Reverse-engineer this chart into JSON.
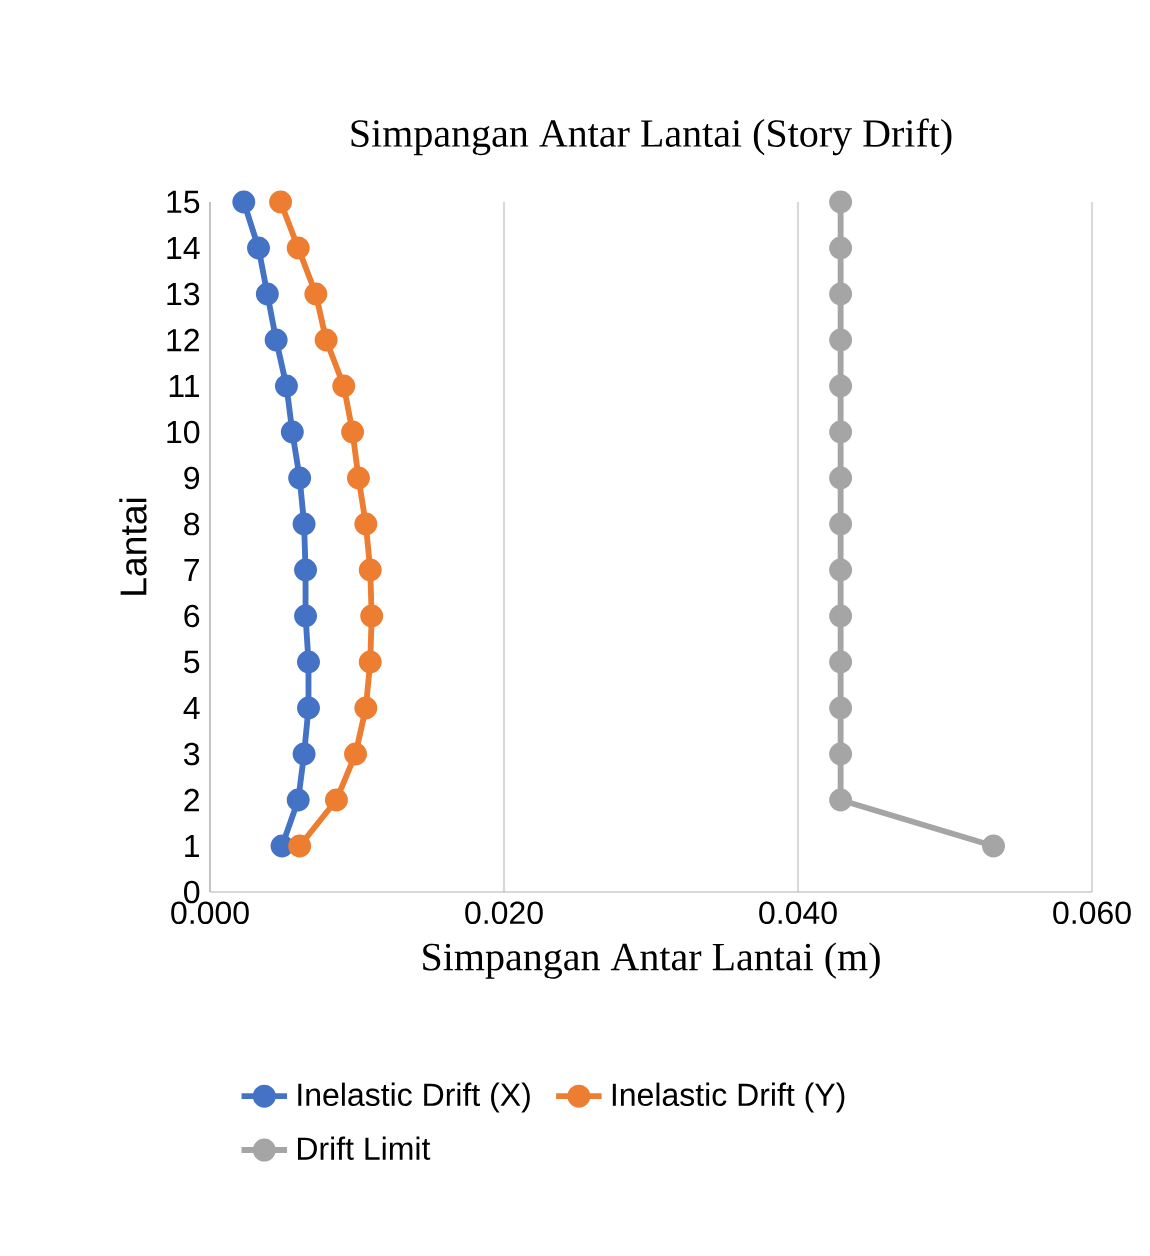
{
  "chart_data": {
    "type": "line",
    "title": "Simpangan Antar Lantai (Story Drift)",
    "xlabel": "Simpangan Antar Lantai (m)",
    "ylabel": "Lantai",
    "series": [
      {
        "name": "Inelastic Drift (X)",
        "color": "#4472c4",
        "x": [
          0.0023,
          0.0033,
          0.0039,
          0.0045,
          0.0052,
          0.0056,
          0.0061,
          0.0064,
          0.0065,
          0.0065,
          0.0067,
          0.0067,
          0.0064,
          0.006,
          0.0049
        ],
        "values": [
          15,
          14,
          13,
          12,
          11,
          10,
          9,
          8,
          7,
          6,
          5,
          4,
          3,
          2,
          1
        ]
      },
      {
        "name": "Inelastic Drift (Y)",
        "color": "#ed7d31",
        "x": [
          0.0048,
          0.006,
          0.0072,
          0.0079,
          0.0091,
          0.0097,
          0.0101,
          0.0106,
          0.0109,
          0.011,
          0.0109,
          0.0106,
          0.0099,
          0.0086,
          0.0061
        ],
        "values": [
          15,
          14,
          13,
          12,
          11,
          10,
          9,
          8,
          7,
          6,
          5,
          4,
          3,
          2,
          1
        ]
      },
      {
        "name": "Drift Limit",
        "color": "#a5a5a5",
        "x": [
          0.0429,
          0.0429,
          0.0429,
          0.0429,
          0.0429,
          0.0429,
          0.0429,
          0.0429,
          0.0429,
          0.0429,
          0.0429,
          0.0429,
          0.0429,
          0.0429,
          0.0533
        ],
        "values": [
          15,
          14,
          13,
          12,
          11,
          10,
          9,
          8,
          7,
          6,
          5,
          4,
          3,
          2,
          1
        ]
      }
    ],
    "xlim": [
      0,
      0.06
    ],
    "xticks": [
      {
        "value": 0,
        "label": "0.000"
      },
      {
        "value": 0.02,
        "label": "0.020"
      },
      {
        "value": 0.04,
        "label": "0.040"
      },
      {
        "value": 0.06,
        "label": "0.060"
      }
    ],
    "ylim": [
      0,
      15
    ],
    "yticks": [
      0,
      1,
      2,
      3,
      4,
      5,
      6,
      7,
      8,
      9,
      10,
      11,
      12,
      13,
      14,
      15
    ],
    "grid": "x",
    "legend": "bottom",
    "marker": "circle",
    "line_style": "solid"
  }
}
